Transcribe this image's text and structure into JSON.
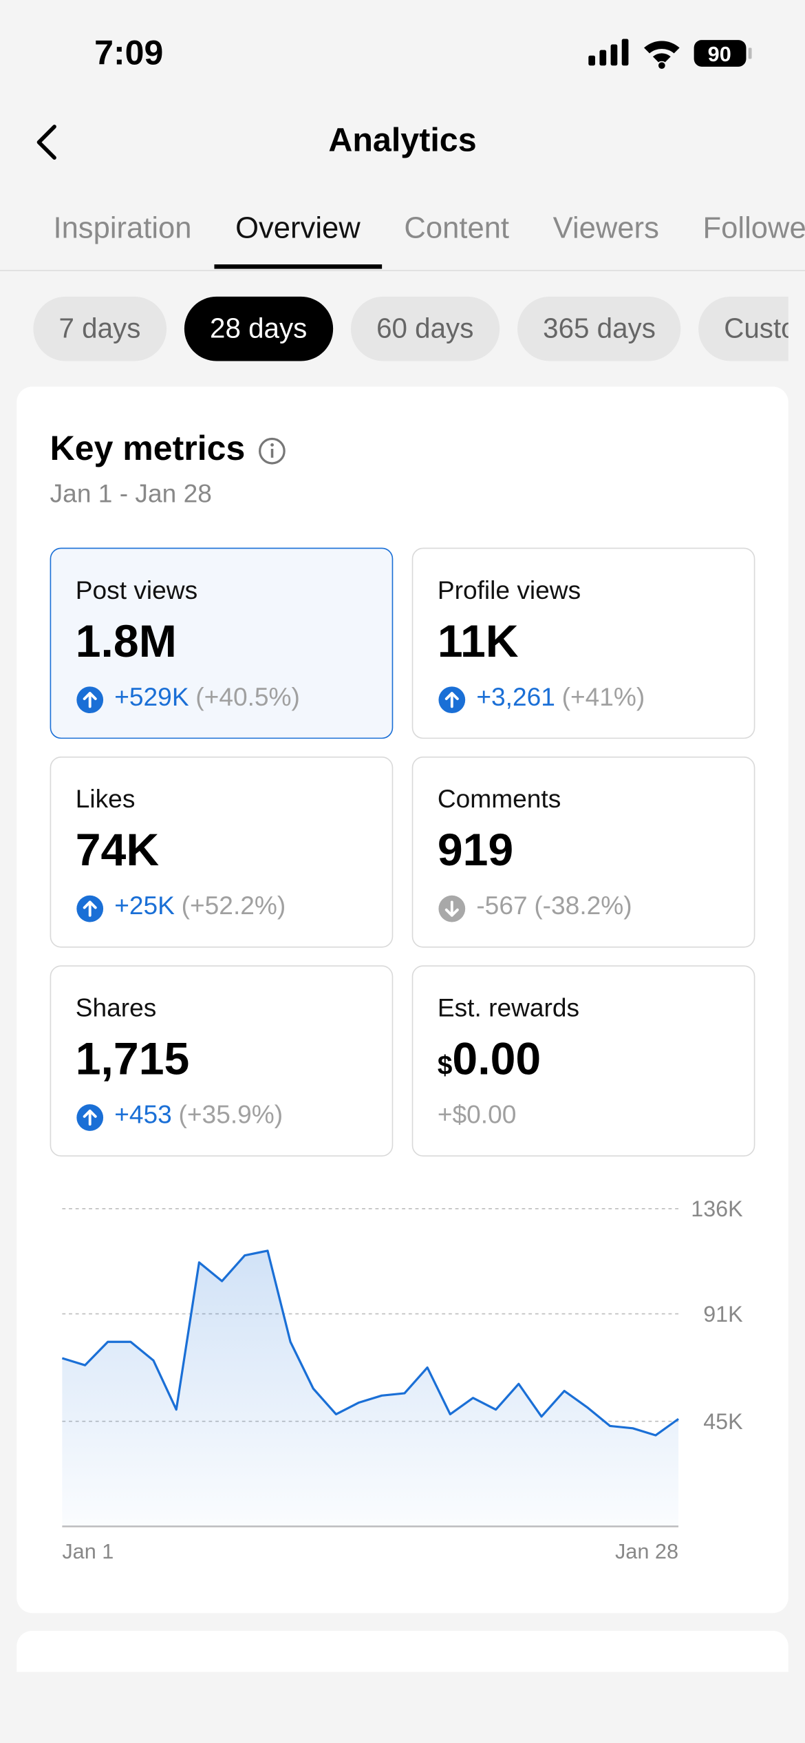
{
  "status_bar": {
    "time": "7:09",
    "battery": "90"
  },
  "header": {
    "title": "Analytics"
  },
  "tabs": {
    "items": [
      "Inspiration",
      "Overview",
      "Content",
      "Viewers",
      "Followers"
    ],
    "active": 1
  },
  "periods": {
    "items": [
      "7 days",
      "28 days",
      "60 days",
      "365 days",
      "Custom"
    ],
    "active": 1
  },
  "card": {
    "title": "Key metrics",
    "date_range": "Jan 1 - Jan 28",
    "metrics": [
      {
        "label": "Post views",
        "value": "1.8M",
        "change": "+529K",
        "percent": "(+40.5%)",
        "direction": "up",
        "selected": true
      },
      {
        "label": "Profile views",
        "value": "11K",
        "change": "+3,261",
        "percent": "(+41%)",
        "direction": "up",
        "selected": false
      },
      {
        "label": "Likes",
        "value": "74K",
        "change": "+25K",
        "percent": "(+52.2%)",
        "direction": "up",
        "selected": false
      },
      {
        "label": "Comments",
        "value": "919",
        "change": "-567",
        "percent": "(-38.2%)",
        "direction": "down",
        "selected": false
      },
      {
        "label": "Shares",
        "value": "1,715",
        "change": "+453",
        "percent": "(+35.9%)",
        "direction": "up",
        "selected": false
      },
      {
        "label": "Est. rewards",
        "currency": "$",
        "value": "0.00",
        "change": "+$0.00",
        "selected": false
      }
    ]
  },
  "chart_data": {
    "type": "line",
    "color": "#1a6fd6",
    "categories": [
      "Jan 1",
      null,
      null,
      null,
      null,
      null,
      null,
      null,
      null,
      null,
      null,
      null,
      null,
      null,
      null,
      null,
      null,
      null,
      null,
      null,
      null,
      null,
      null,
      null,
      null,
      null,
      null,
      "Jan 28"
    ],
    "values": [
      72000,
      69000,
      79000,
      79000,
      71000,
      50000,
      113000,
      105000,
      116000,
      118000,
      79000,
      59000,
      48000,
      53000,
      56000,
      57000,
      68000,
      48000,
      55000,
      50000,
      61000,
      47000,
      58000,
      51000,
      43000,
      42000,
      39000,
      46000
    ],
    "ylim": [
      0,
      136000
    ],
    "yticks": [
      {
        "value": 45000,
        "label": "45K"
      },
      {
        "value": 91000,
        "label": "91K"
      },
      {
        "value": 136000,
        "label": "136K"
      }
    ],
    "grid": true
  }
}
